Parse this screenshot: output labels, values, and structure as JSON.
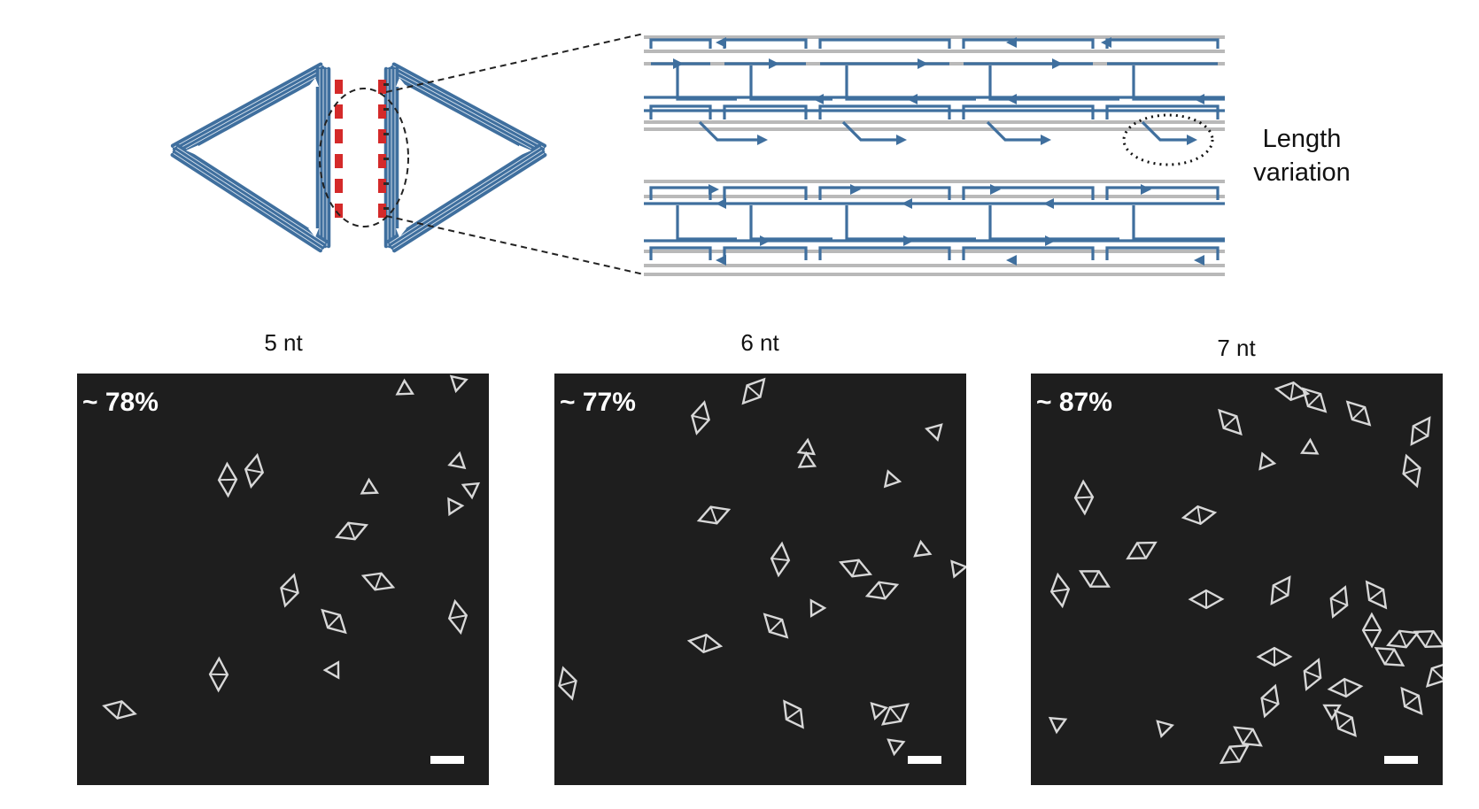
{
  "colors": {
    "strand": "#3f6f9e",
    "helix": "#b9b9b9",
    "sticky_end": "#d42a2a",
    "afm_bg": "#1e1e1e"
  },
  "annotation": {
    "line1": "Length",
    "line2": "variation"
  },
  "panels": [
    {
      "label": "5 nt",
      "yield": "~ 78%"
    },
    {
      "label": "6 nt",
      "yield": "~ 77%"
    },
    {
      "label": "7 nt",
      "yield": "~ 87%"
    }
  ]
}
